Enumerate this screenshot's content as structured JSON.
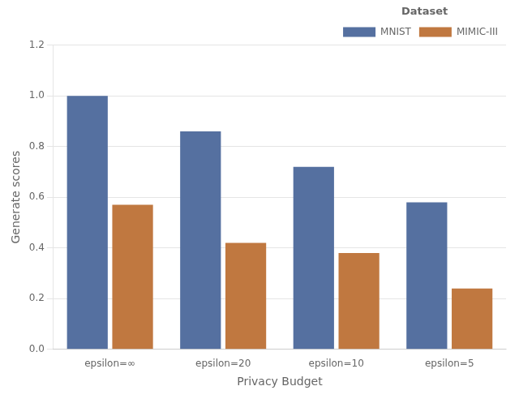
{
  "chart_data": {
    "type": "bar",
    "categories": [
      "epsilon=∞",
      "epsilon=20",
      "epsilon=10",
      "epsilon=5"
    ],
    "series": [
      {
        "name": "MNIST",
        "color": "#5570a0",
        "values": [
          1.0,
          0.86,
          0.72,
          0.58
        ]
      },
      {
        "name": "MIMIC-III",
        "color": "#c07840",
        "values": [
          0.57,
          0.42,
          0.38,
          0.24
        ]
      }
    ],
    "xlabel": "Privacy Budget",
    "ylabel": "Generate scores",
    "ylim": [
      0,
      1.2
    ],
    "yticks": [
      {
        "value": 0,
        "label": "0.0"
      },
      0.2,
      0.4,
      0.6,
      0.8,
      {
        "value": 1,
        "label": "1.0"
      },
      1.2
    ],
    "grid": true,
    "legend": "upper right",
    "legend_title": "Dataset"
  }
}
